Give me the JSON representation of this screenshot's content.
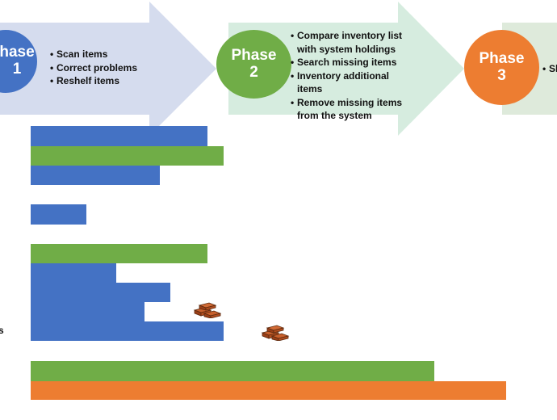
{
  "colors": {
    "blue": "#4472c4",
    "green": "#70ad47",
    "orange": "#ed7d31",
    "arrow_blue": "#d5dcee",
    "arrow_green": "#d6ecdf"
  },
  "phases": [
    {
      "word": "Phase",
      "number": "1",
      "visible_word": "hase",
      "items": [
        "Scan items",
        "Correct problems",
        "Reshelf items"
      ]
    },
    {
      "word": "Phase",
      "number": "2",
      "items": [
        "Compare inventory list with system holdings",
        "Search missing items",
        "Inventory additional items",
        "Remove missing items from the system"
      ]
    },
    {
      "word": "Phase",
      "number": "3",
      "items": [
        "Sh"
      ]
    }
  ],
  "edge_text": "s",
  "bars": [
    {
      "color": "blue",
      "value": 0.373
    },
    {
      "color": "green",
      "value": 0.402
    },
    {
      "color": "blue",
      "value": 0.287
    },
    {
      "color": "blue",
      "value": 0.155
    },
    {
      "color": "green",
      "value": 0.373
    },
    {
      "color": "blue",
      "value": 0.208,
      "step_to": 0.306
    },
    {
      "color": "blue",
      "value": 0.259,
      "step_to": 0.402
    },
    {
      "color": "green",
      "value": 0.779
    },
    {
      "color": "orange",
      "value": 0.908
    }
  ],
  "brick_icons": [
    "brick-pile-icon",
    "brick-pile-icon"
  ]
}
